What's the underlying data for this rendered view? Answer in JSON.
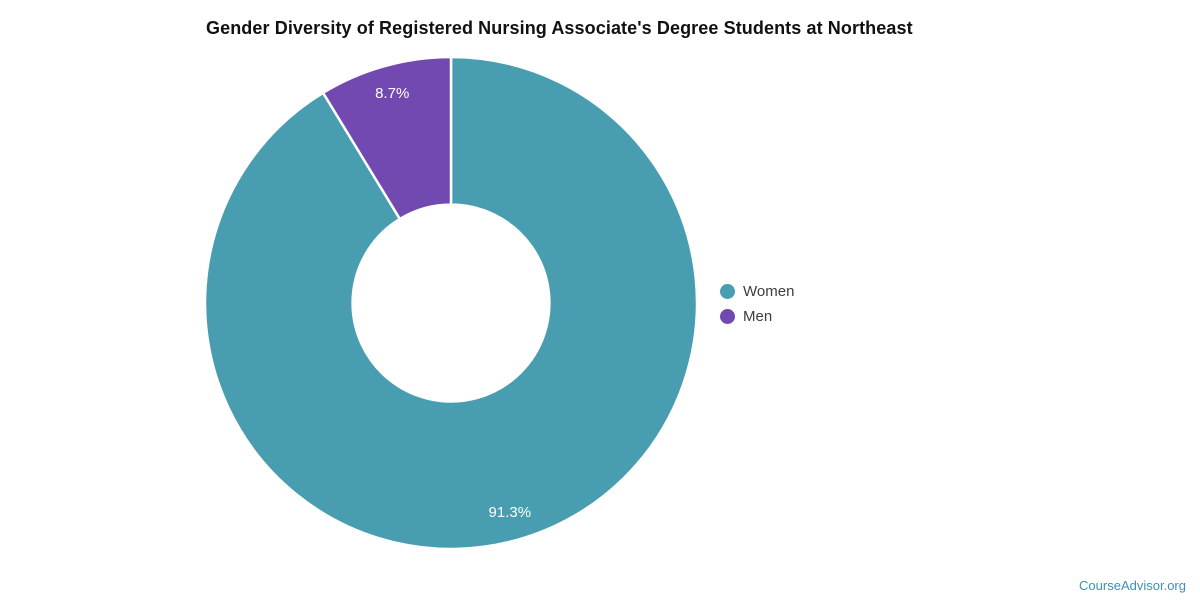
{
  "chart_data": {
    "type": "pie",
    "subtype": "donut",
    "title": "Gender Diversity of Registered Nursing Associate's Degree Students at Northeast",
    "series": [
      {
        "name": "Women",
        "value": 91.3,
        "label": "91.3%",
        "color": "#489EB0"
      },
      {
        "name": "Men",
        "value": 8.7,
        "label": "8.7%",
        "color": "#7249B0"
      }
    ],
    "start_angle_deg": 0,
    "direction": "clockwise",
    "legend_position": "right",
    "donut_hole_ratio": 0.4,
    "separator_color": "#ffffff"
  },
  "watermark": {
    "label": "CourseAdvisor.org",
    "color": "#4090B4"
  }
}
